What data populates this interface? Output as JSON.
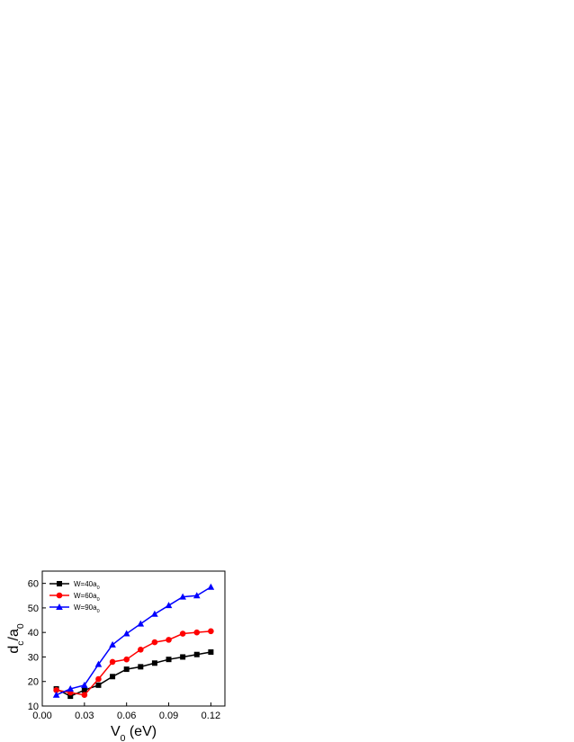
{
  "chart_data": {
    "type": "line",
    "xlabel": [
      {
        "text": "V"
      },
      {
        "text": "0",
        "sub": true
      },
      {
        "text": " (eV)"
      }
    ],
    "ylabel": [
      {
        "text": "d"
      },
      {
        "text": "c",
        "sub": true
      },
      {
        "text": "/a"
      },
      {
        "text": "0",
        "sub": true
      }
    ],
    "x": [
      0.01,
      0.02,
      0.03,
      0.04,
      0.05,
      0.06,
      0.07,
      0.08,
      0.09,
      0.1,
      0.11,
      0.12
    ],
    "series": [
      {
        "name": "W=40a",
        "name_sub": "0",
        "color": "#000000",
        "marker": "square",
        "values": [
          17,
          14,
          16.5,
          18.5,
          22,
          25,
          26,
          27.5,
          29,
          30,
          31,
          32
        ]
      },
      {
        "name": "W=60a",
        "name_sub": "0",
        "color": "#ff0000",
        "marker": "circle",
        "values": [
          16.5,
          15.5,
          14.5,
          21,
          28,
          29,
          33,
          36,
          37,
          39.5,
          40,
          40.5
        ]
      },
      {
        "name": "W=90a",
        "name_sub": "0",
        "color": "#0000ff",
        "marker": "triangle",
        "values": [
          14.5,
          17,
          18.5,
          27,
          35,
          39.5,
          43.5,
          47.5,
          51,
          54.5,
          55,
          58.5
        ]
      }
    ],
    "xlim": [
      0,
      0.13
    ],
    "ylim": [
      10,
      65
    ],
    "xticks": [
      {
        "value": 0,
        "label": "0.00"
      },
      0.03,
      0.06,
      0.09,
      0.12
    ],
    "yticks": [
      10,
      20,
      30,
      40,
      50,
      60
    ],
    "legend": "upper-left"
  }
}
